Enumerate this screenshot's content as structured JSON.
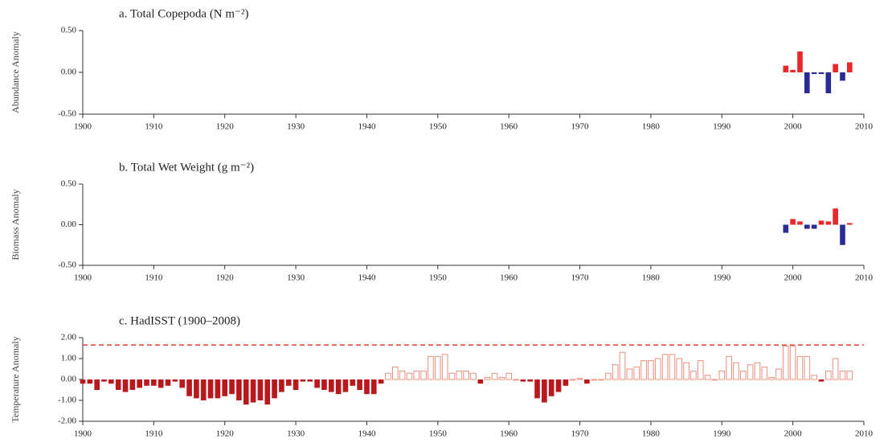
{
  "chart_data": [
    {
      "type": "bar",
      "title": "a. Total Copepoda (N m⁻²)",
      "y_label": "Abundance Anomaly",
      "x": [
        1999,
        2000,
        2001,
        2002,
        2003,
        2004,
        2005,
        2006,
        2007,
        2008
      ],
      "values": [
        0.08,
        0.03,
        0.25,
        -0.25,
        -0.02,
        -0.02,
        -0.25,
        0.1,
        -0.1,
        0.12
      ],
      "positive_color": "#e8282a",
      "negative_color": "#2b2b98",
      "positive_outline": false,
      "xlim": [
        1900,
        2010
      ],
      "xticks": [
        1900,
        1910,
        1920,
        1930,
        1940,
        1950,
        1960,
        1970,
        1980,
        1990,
        2000,
        2010
      ],
      "ylim": [
        -0.5,
        0.5
      ],
      "yticks": [
        {
          "value": -0.5,
          "label": "-0.50"
        },
        {
          "value": 0,
          "label": "0.00"
        },
        {
          "value": 0.5,
          "label": "0.50"
        }
      ]
    },
    {
      "type": "bar",
      "title": "b. Total Wet Weight (g m⁻²)",
      "y_label": "Biomass Anomaly",
      "x": [
        1999,
        2000,
        2001,
        2002,
        2003,
        2004,
        2005,
        2006,
        2007,
        2008
      ],
      "values": [
        -0.1,
        0.07,
        0.04,
        -0.05,
        -0.05,
        0.05,
        0.04,
        0.2,
        -0.25,
        0.02
      ],
      "positive_color": "#e8282a",
      "negative_color": "#2b2b98",
      "positive_outline": false,
      "xlim": [
        1900,
        2010
      ],
      "xticks": [
        1900,
        1910,
        1920,
        1930,
        1940,
        1950,
        1960,
        1970,
        1980,
        1990,
        2000,
        2010
      ],
      "ylim": [
        -0.5,
        0.5
      ],
      "yticks": [
        {
          "value": -0.5,
          "label": "-0.50"
        },
        {
          "value": 0,
          "label": "0.00"
        },
        {
          "value": 0.5,
          "label": "0.50"
        }
      ]
    },
    {
      "type": "bar",
      "title": "c. HadISST (1900–2008)",
      "y_label": "Temperature Anomaly",
      "x": [
        1900,
        1901,
        1902,
        1903,
        1904,
        1905,
        1906,
        1907,
        1908,
        1909,
        1910,
        1911,
        1912,
        1913,
        1914,
        1915,
        1916,
        1917,
        1918,
        1919,
        1920,
        1921,
        1922,
        1923,
        1924,
        1925,
        1926,
        1927,
        1928,
        1929,
        1930,
        1931,
        1932,
        1933,
        1934,
        1935,
        1936,
        1937,
        1938,
        1939,
        1940,
        1941,
        1942,
        1943,
        1944,
        1945,
        1946,
        1947,
        1948,
        1949,
        1950,
        1951,
        1952,
        1953,
        1954,
        1955,
        1956,
        1957,
        1958,
        1959,
        1960,
        1961,
        1962,
        1963,
        1964,
        1965,
        1966,
        1967,
        1968,
        1969,
        1970,
        1971,
        1972,
        1973,
        1974,
        1975,
        1976,
        1977,
        1978,
        1979,
        1980,
        1981,
        1982,
        1983,
        1984,
        1985,
        1986,
        1987,
        1988,
        1989,
        1990,
        1991,
        1992,
        1993,
        1994,
        1995,
        1996,
        1997,
        1998,
        1999,
        2000,
        2001,
        2002,
        2003,
        2004,
        2005,
        2006,
        2007,
        2008
      ],
      "values": [
        -0.2,
        -0.2,
        -0.5,
        -0.1,
        -0.2,
        -0.5,
        -0.6,
        -0.5,
        -0.4,
        -0.3,
        -0.3,
        -0.4,
        -0.3,
        -0.1,
        -0.4,
        -0.8,
        -0.9,
        -1.0,
        -0.9,
        -0.9,
        -0.8,
        -0.7,
        -1.0,
        -1.2,
        -1.1,
        -1.0,
        -1.2,
        -0.9,
        -0.6,
        -0.3,
        -0.5,
        -0.1,
        -0.1,
        -0.4,
        -0.5,
        -0.6,
        -0.7,
        -0.6,
        -0.3,
        -0.5,
        -0.7,
        -0.7,
        -0.2,
        0.3,
        0.6,
        0.4,
        0.3,
        0.4,
        0.4,
        1.1,
        1.1,
        1.2,
        0.3,
        0.4,
        0.4,
        0.3,
        -0.2,
        0.1,
        0.3,
        0.1,
        0.3,
        0.0,
        -0.1,
        -0.1,
        -0.9,
        -1.1,
        -0.8,
        -0.6,
        -0.3,
        0.0,
        0.05,
        -0.2,
        0.0,
        0.0,
        0.3,
        0.7,
        1.3,
        0.5,
        0.6,
        0.9,
        0.9,
        1.0,
        1.2,
        1.2,
        1.0,
        0.8,
        0.4,
        0.9,
        0.2,
        0.0,
        0.4,
        1.1,
        0.8,
        0.4,
        0.7,
        0.8,
        0.6,
        0.1,
        0.5,
        1.6,
        1.6,
        1.1,
        1.1,
        0.2,
        -0.1,
        0.4,
        1.0,
        0.4,
        0.4
      ],
      "positive_color": "#e8907e",
      "negative_color": "#b8191c",
      "positive_outline": true,
      "reference_line": 1.65,
      "reference_color": "#e0402e",
      "xlim": [
        1900,
        2010
      ],
      "xticks": [
        1900,
        1910,
        1920,
        1930,
        1940,
        1950,
        1960,
        1970,
        1980,
        1990,
        2000,
        2010
      ],
      "ylim": [
        -2,
        2
      ],
      "yticks": [
        {
          "value": -2,
          "label": "-2.00"
        },
        {
          "value": -1,
          "label": "-1.00"
        },
        {
          "value": 0,
          "label": "0.00"
        },
        {
          "value": 1,
          "label": "1.00"
        },
        {
          "value": 2,
          "label": "2.00"
        }
      ]
    }
  ]
}
